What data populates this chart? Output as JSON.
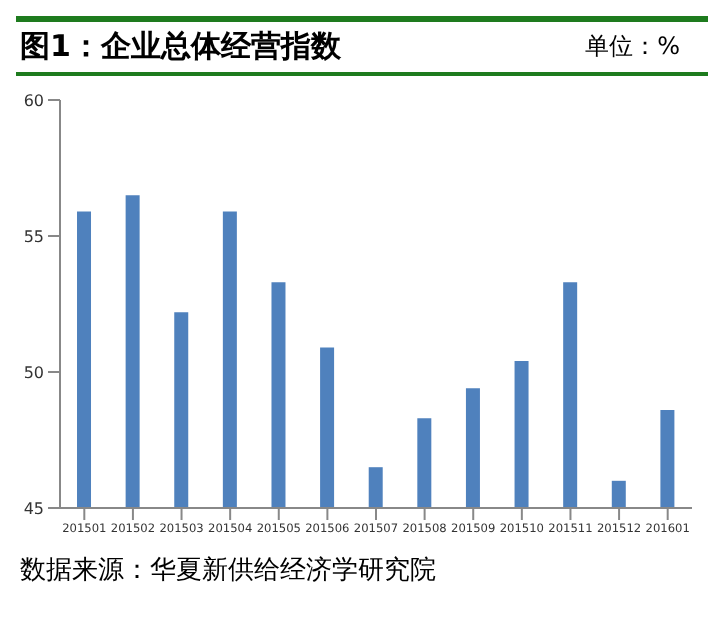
{
  "chart_data": {
    "type": "bar",
    "title": "图1：企业总体经营指数",
    "annotations": [
      "单位：%",
      "数据来源：华夏新供给经济学研究院"
    ],
    "categories": [
      "201501",
      "201502",
      "201503",
      "201504",
      "201505",
      "201506",
      "201507",
      "201508",
      "201509",
      "201510",
      "201511",
      "201512",
      "201601"
    ],
    "values": [
      55.9,
      56.5,
      52.2,
      55.9,
      53.3,
      50.9,
      46.5,
      48.3,
      49.4,
      50.4,
      53.3,
      46.0,
      48.6
    ],
    "color": "#4f81bd",
    "ylim": [
      45,
      60
    ],
    "yticks": [
      45,
      50,
      55,
      60
    ],
    "grid": false
  }
}
